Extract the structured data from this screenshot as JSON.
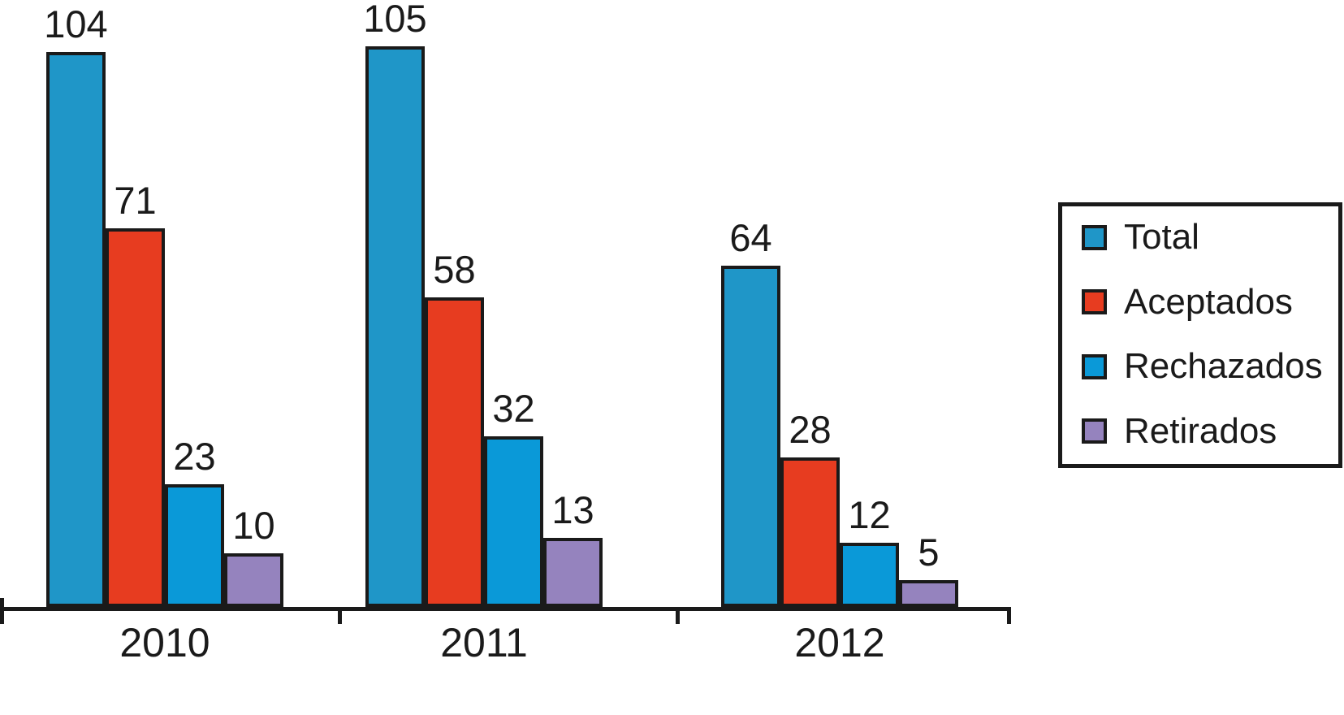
{
  "chart_data": {
    "type": "bar",
    "categories": [
      "2010",
      "2011",
      "2012"
    ],
    "series": [
      {
        "name": "Total",
        "color": "#1F96C8",
        "values": [
          104,
          105,
          64
        ]
      },
      {
        "name": "Aceptados",
        "color": "#E73C20",
        "values": [
          71,
          58,
          28
        ]
      },
      {
        "name": "Rechazados",
        "color": "#0A99D8",
        "values": [
          23,
          32,
          12
        ]
      },
      {
        "name": "Retirados",
        "color": "#9583BE",
        "values": [
          10,
          13,
          5
        ]
      }
    ],
    "value_labels_shown": true,
    "legend": {
      "position": "right",
      "entries": [
        "Total",
        "Aceptados",
        "Rechazados",
        "Retirados"
      ]
    },
    "axes": {
      "x_tick_labels": [
        "2010",
        "2011",
        "2012"
      ],
      "y_axis_visible": false,
      "gridlines": false
    },
    "colors": {
      "outline": "#1A1A1A",
      "text": "#1A1A1A",
      "background": "#FFFFFF"
    }
  }
}
